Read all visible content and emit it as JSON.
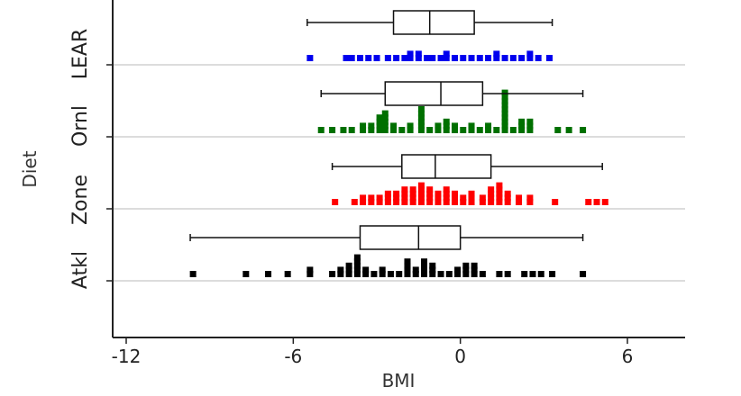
{
  "chart_data": {
    "type": "box-dot",
    "xlabel": "BMI",
    "ylabel": "Diet",
    "xlim": [
      -12.5,
      8
    ],
    "x_ticks": [
      -12,
      -6,
      0,
      6
    ],
    "x_tick_labels": [
      "-12",
      "-6",
      "0",
      "6"
    ],
    "grid": "horizontal group separators",
    "categories": [
      "LEAR",
      "Ornl",
      "Zone",
      "Atkl"
    ],
    "series": [
      {
        "name": "LEAR",
        "color": "#0000ee",
        "box": {
          "whisker_low": -5.5,
          "q1": -2.4,
          "median": -1.1,
          "q3": 0.5,
          "whisker_high": 3.3
        },
        "points": [
          {
            "x": -5.4,
            "n": 1
          },
          {
            "x": -4.1,
            "n": 1
          },
          {
            "x": -3.9,
            "n": 1
          },
          {
            "x": -3.6,
            "n": 1
          },
          {
            "x": -3.3,
            "n": 1
          },
          {
            "x": -3.0,
            "n": 1
          },
          {
            "x": -2.6,
            "n": 1
          },
          {
            "x": -2.3,
            "n": 1
          },
          {
            "x": -2.0,
            "n": 1
          },
          {
            "x": -1.8,
            "n": 2
          },
          {
            "x": -1.5,
            "n": 2
          },
          {
            "x": -1.2,
            "n": 1
          },
          {
            "x": -1.0,
            "n": 1
          },
          {
            "x": -0.7,
            "n": 1
          },
          {
            "x": -0.5,
            "n": 2
          },
          {
            "x": -0.2,
            "n": 1
          },
          {
            "x": 0.1,
            "n": 1
          },
          {
            "x": 0.4,
            "n": 1
          },
          {
            "x": 0.7,
            "n": 1
          },
          {
            "x": 1.0,
            "n": 1
          },
          {
            "x": 1.3,
            "n": 2
          },
          {
            "x": 1.6,
            "n": 1
          },
          {
            "x": 1.9,
            "n": 1
          },
          {
            "x": 2.2,
            "n": 1
          },
          {
            "x": 2.5,
            "n": 2
          },
          {
            "x": 2.8,
            "n": 1
          },
          {
            "x": 3.2,
            "n": 1
          }
        ]
      },
      {
        "name": "Ornl",
        "color": "#007000",
        "box": {
          "whisker_low": -5.0,
          "q1": -2.7,
          "median": -0.7,
          "q3": 0.8,
          "whisker_high": 4.4
        },
        "points": [
          {
            "x": -5.0,
            "n": 1
          },
          {
            "x": -4.6,
            "n": 1
          },
          {
            "x": -4.2,
            "n": 1
          },
          {
            "x": -3.9,
            "n": 1
          },
          {
            "x": -3.5,
            "n": 2
          },
          {
            "x": -3.2,
            "n": 2
          },
          {
            "x": -2.9,
            "n": 4
          },
          {
            "x": -2.7,
            "n": 5
          },
          {
            "x": -2.4,
            "n": 2
          },
          {
            "x": -2.1,
            "n": 1
          },
          {
            "x": -1.8,
            "n": 2
          },
          {
            "x": -1.4,
            "n": 6
          },
          {
            "x": -1.1,
            "n": 1
          },
          {
            "x": -0.8,
            "n": 2
          },
          {
            "x": -0.5,
            "n": 3
          },
          {
            "x": -0.2,
            "n": 2
          },
          {
            "x": 0.1,
            "n": 1
          },
          {
            "x": 0.4,
            "n": 2
          },
          {
            "x": 0.7,
            "n": 1
          },
          {
            "x": 1.0,
            "n": 2
          },
          {
            "x": 1.3,
            "n": 1
          },
          {
            "x": 1.6,
            "n": 10
          },
          {
            "x": 1.9,
            "n": 1
          },
          {
            "x": 2.2,
            "n": 3
          },
          {
            "x": 2.5,
            "n": 3
          },
          {
            "x": 3.5,
            "n": 1
          },
          {
            "x": 3.9,
            "n": 1
          },
          {
            "x": 4.4,
            "n": 1
          }
        ]
      },
      {
        "name": "Zone",
        "color": "#ff0000",
        "box": {
          "whisker_low": -4.6,
          "q1": -2.1,
          "median": -0.9,
          "q3": 1.1,
          "whisker_high": 5.1
        },
        "points": [
          {
            "x": -4.5,
            "n": 1
          },
          {
            "x": -3.8,
            "n": 1
          },
          {
            "x": -3.5,
            "n": 2
          },
          {
            "x": -3.2,
            "n": 2
          },
          {
            "x": -2.9,
            "n": 2
          },
          {
            "x": -2.6,
            "n": 3
          },
          {
            "x": -2.3,
            "n": 3
          },
          {
            "x": -2.0,
            "n": 4
          },
          {
            "x": -1.7,
            "n": 4
          },
          {
            "x": -1.4,
            "n": 5
          },
          {
            "x": -1.1,
            "n": 4
          },
          {
            "x": -0.8,
            "n": 3
          },
          {
            "x": -0.5,
            "n": 4
          },
          {
            "x": -0.2,
            "n": 3
          },
          {
            "x": 0.1,
            "n": 2
          },
          {
            "x": 0.4,
            "n": 3
          },
          {
            "x": 0.8,
            "n": 2
          },
          {
            "x": 1.1,
            "n": 4
          },
          {
            "x": 1.4,
            "n": 5
          },
          {
            "x": 1.7,
            "n": 3
          },
          {
            "x": 2.1,
            "n": 2
          },
          {
            "x": 2.5,
            "n": 2
          },
          {
            "x": 3.4,
            "n": 1
          },
          {
            "x": 4.6,
            "n": 1
          },
          {
            "x": 4.9,
            "n": 1
          },
          {
            "x": 5.2,
            "n": 1
          }
        ]
      },
      {
        "name": "Atkl",
        "color": "#000000",
        "box": {
          "whisker_low": -9.7,
          "q1": -3.6,
          "median": -1.5,
          "q3": 0,
          "whisker_high": 4.4
        },
        "points": [
          {
            "x": -9.6,
            "n": 1
          },
          {
            "x": -7.7,
            "n": 1
          },
          {
            "x": -6.9,
            "n": 1
          },
          {
            "x": -6.2,
            "n": 1
          },
          {
            "x": -5.4,
            "n": 2
          },
          {
            "x": -4.6,
            "n": 1
          },
          {
            "x": -4.3,
            "n": 2
          },
          {
            "x": -4.0,
            "n": 3
          },
          {
            "x": -3.7,
            "n": 5
          },
          {
            "x": -3.4,
            "n": 2
          },
          {
            "x": -3.1,
            "n": 1
          },
          {
            "x": -2.8,
            "n": 2
          },
          {
            "x": -2.5,
            "n": 1
          },
          {
            "x": -2.2,
            "n": 1
          },
          {
            "x": -1.9,
            "n": 4
          },
          {
            "x": -1.6,
            "n": 2
          },
          {
            "x": -1.3,
            "n": 4
          },
          {
            "x": -1.0,
            "n": 3
          },
          {
            "x": -0.7,
            "n": 1
          },
          {
            "x": -0.4,
            "n": 1
          },
          {
            "x": -0.1,
            "n": 2
          },
          {
            "x": 0.2,
            "n": 3
          },
          {
            "x": 0.5,
            "n": 3
          },
          {
            "x": 0.8,
            "n": 1
          },
          {
            "x": 1.4,
            "n": 1
          },
          {
            "x": 1.7,
            "n": 1
          },
          {
            "x": 2.3,
            "n": 1
          },
          {
            "x": 2.6,
            "n": 1
          },
          {
            "x": 2.9,
            "n": 1
          },
          {
            "x": 3.3,
            "n": 1
          },
          {
            "x": 4.4,
            "n": 1
          }
        ]
      }
    ]
  }
}
